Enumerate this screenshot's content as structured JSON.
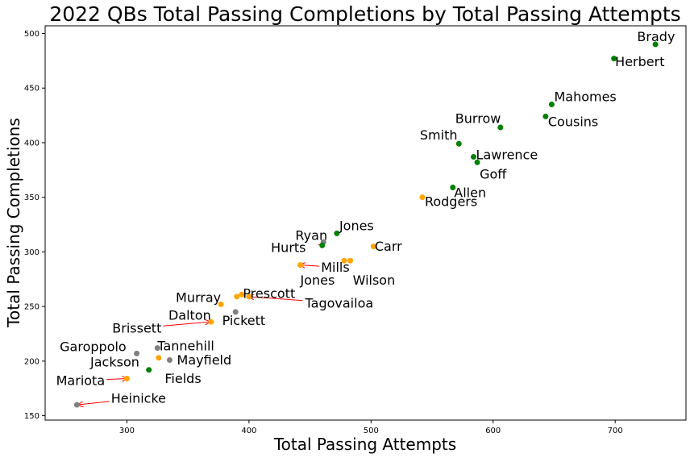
{
  "chart_data": {
    "type": "scatter",
    "title": "2022 QBs Total Passing Completions by Total Passing Attempts",
    "xlabel": "Total Passing Attempts",
    "ylabel": "Total Passing Completions",
    "xlim": [
      233,
      758
    ],
    "ylim": [
      146,
      507
    ],
    "xticks": [
      "300",
      "400",
      "500",
      "600",
      "700"
    ],
    "yticks": [
      "150",
      "200",
      "250",
      "300",
      "350",
      "400",
      "450",
      "500"
    ],
    "grid": false,
    "colors": {
      "green": "#008000",
      "orange": "#ffa500",
      "gray": "#808080",
      "arrow": "#ff0000"
    },
    "points": [
      {
        "name": "Brady",
        "x": 733,
        "y": 490,
        "color": "green"
      },
      {
        "name": "Herbert",
        "x": 699,
        "y": 477,
        "color": "green"
      },
      {
        "name": "Mahomes",
        "x": 648,
        "y": 435,
        "color": "green"
      },
      {
        "name": "Cousins",
        "x": 643,
        "y": 424,
        "color": "green"
      },
      {
        "name": "Burrow",
        "x": 606,
        "y": 414,
        "color": "green"
      },
      {
        "name": "Smith",
        "x": 572,
        "y": 399,
        "color": "green"
      },
      {
        "name": "Lawrence",
        "x": 584,
        "y": 387,
        "color": "green"
      },
      {
        "name": "Goff",
        "x": 587,
        "y": 382,
        "color": "green"
      },
      {
        "name": "Allen",
        "x": 567,
        "y": 359,
        "color": "green"
      },
      {
        "name": "Rodgers",
        "x": 542,
        "y": 350,
        "color": "orange"
      },
      {
        "name": "Jones",
        "x": 472,
        "y": 317,
        "color": "green"
      },
      {
        "name": "Ryan",
        "x": 461,
        "y": 309,
        "color": "gray"
      },
      {
        "name": "Hurts",
        "x": 460,
        "y": 306,
        "color": "green"
      },
      {
        "name": "Carr",
        "x": 502,
        "y": 305,
        "color": "orange"
      },
      {
        "name": "Mills",
        "x": 483,
        "y": 292,
        "color": "orange"
      },
      {
        "name": "Wilson",
        "x": 478,
        "y": 292,
        "color": "orange"
      },
      {
        "name": "Jones",
        "x": 442,
        "y": 288,
        "color": "orange"
      },
      {
        "name": "Prescott",
        "x": 394,
        "y": 261,
        "color": "orange"
      },
      {
        "name": "Tagovailoa",
        "x": 400,
        "y": 259,
        "color": "orange"
      },
      {
        "name": "Murray",
        "x": 390,
        "y": 259,
        "color": "orange"
      },
      {
        "name": "Dalton",
        "x": 377,
        "y": 252,
        "color": "orange"
      },
      {
        "name": "Pickett",
        "x": 389,
        "y": 245,
        "color": "gray"
      },
      {
        "name": "Brissett",
        "x": 369,
        "y": 236,
        "color": "orange"
      },
      {
        "name": "Garoppolo",
        "x": 308,
        "y": 207,
        "color": "gray"
      },
      {
        "name": "Tannehill",
        "x": 325,
        "y": 212,
        "color": "gray"
      },
      {
        "name": "Jackson",
        "x": 326,
        "y": 203,
        "color": "orange"
      },
      {
        "name": "Mayfield",
        "x": 335,
        "y": 201,
        "color": "gray"
      },
      {
        "name": "Fields",
        "x": 318,
        "y": 192,
        "color": "green"
      },
      {
        "name": "Mariota",
        "x": 300,
        "y": 184,
        "color": "orange"
      },
      {
        "name": "Heinicke",
        "x": 259,
        "y": 160,
        "color": "gray"
      }
    ],
    "annotations": [
      {
        "text": "Brady",
        "x": 718,
        "y": 493,
        "ha": "left"
      },
      {
        "text": "Herbert",
        "x": 700,
        "y": 470,
        "ha": "left"
      },
      {
        "text": "Mahomes",
        "x": 650,
        "y": 438,
        "ha": "left"
      },
      {
        "text": "Cousins",
        "x": 645,
        "y": 415,
        "ha": "left"
      },
      {
        "text": "Burrow",
        "x": 569,
        "y": 418,
        "ha": "left"
      },
      {
        "text": "Smith",
        "x": 540,
        "y": 403,
        "ha": "left"
      },
      {
        "text": "Lawrence",
        "x": 586,
        "y": 385,
        "ha": "left"
      },
      {
        "text": "Goff",
        "x": 589,
        "y": 367,
        "ha": "left"
      },
      {
        "text": "Allen",
        "x": 568,
        "y": 350,
        "ha": "left"
      },
      {
        "text": "Rodgers",
        "x": 544,
        "y": 342,
        "ha": "left"
      },
      {
        "text": "Jones",
        "x": 474,
        "y": 320,
        "ha": "left"
      },
      {
        "text": "Ryan",
        "x": 438,
        "y": 311,
        "ha": "left",
        "arrow_to": [
          461,
          306
        ]
      },
      {
        "text": "Hurts",
        "x": 418,
        "y": 300,
        "ha": "left"
      },
      {
        "text": "Carr",
        "x": 503,
        "y": 301,
        "ha": "left"
      },
      {
        "text": "Mills",
        "x": 459,
        "y": 282,
        "ha": "left",
        "arrow_to": [
          442,
          288
        ]
      },
      {
        "text": "Jones",
        "x": 442,
        "y": 270,
        "ha": "left"
      },
      {
        "text": "Wilson",
        "x": 485,
        "y": 270,
        "ha": "left"
      },
      {
        "text": "Prescott",
        "x": 395,
        "y": 258,
        "ha": "left"
      },
      {
        "text": "Tagovailoa",
        "x": 446,
        "y": 249,
        "ha": "left",
        "arrow_to": [
          400,
          259
        ]
      },
      {
        "text": "Murray",
        "x": 340,
        "y": 254,
        "ha": "left"
      },
      {
        "text": "Dalton",
        "x": 334,
        "y": 238,
        "ha": "left"
      },
      {
        "text": "Pickett",
        "x": 378,
        "y": 233,
        "ha": "left"
      },
      {
        "text": "Brissett",
        "x": 288,
        "y": 226,
        "ha": "left",
        "arrow_to": [
          368,
          236
        ]
      },
      {
        "text": "Garoppolo",
        "x": 245,
        "y": 209,
        "ha": "left"
      },
      {
        "text": "Tannehill",
        "x": 325,
        "y": 210,
        "ha": "left"
      },
      {
        "text": "Jackson",
        "x": 270,
        "y": 195,
        "ha": "left"
      },
      {
        "text": "Mayfield",
        "x": 341,
        "y": 197,
        "ha": "left"
      },
      {
        "text": "Fields",
        "x": 331,
        "y": 180,
        "ha": "left"
      },
      {
        "text": "Mariota",
        "x": 242,
        "y": 178,
        "ha": "left",
        "arrow_to": [
          300,
          184
        ]
      },
      {
        "text": "Heinicke",
        "x": 287,
        "y": 162,
        "ha": "left",
        "arrow_to": [
          260,
          160
        ]
      }
    ]
  }
}
